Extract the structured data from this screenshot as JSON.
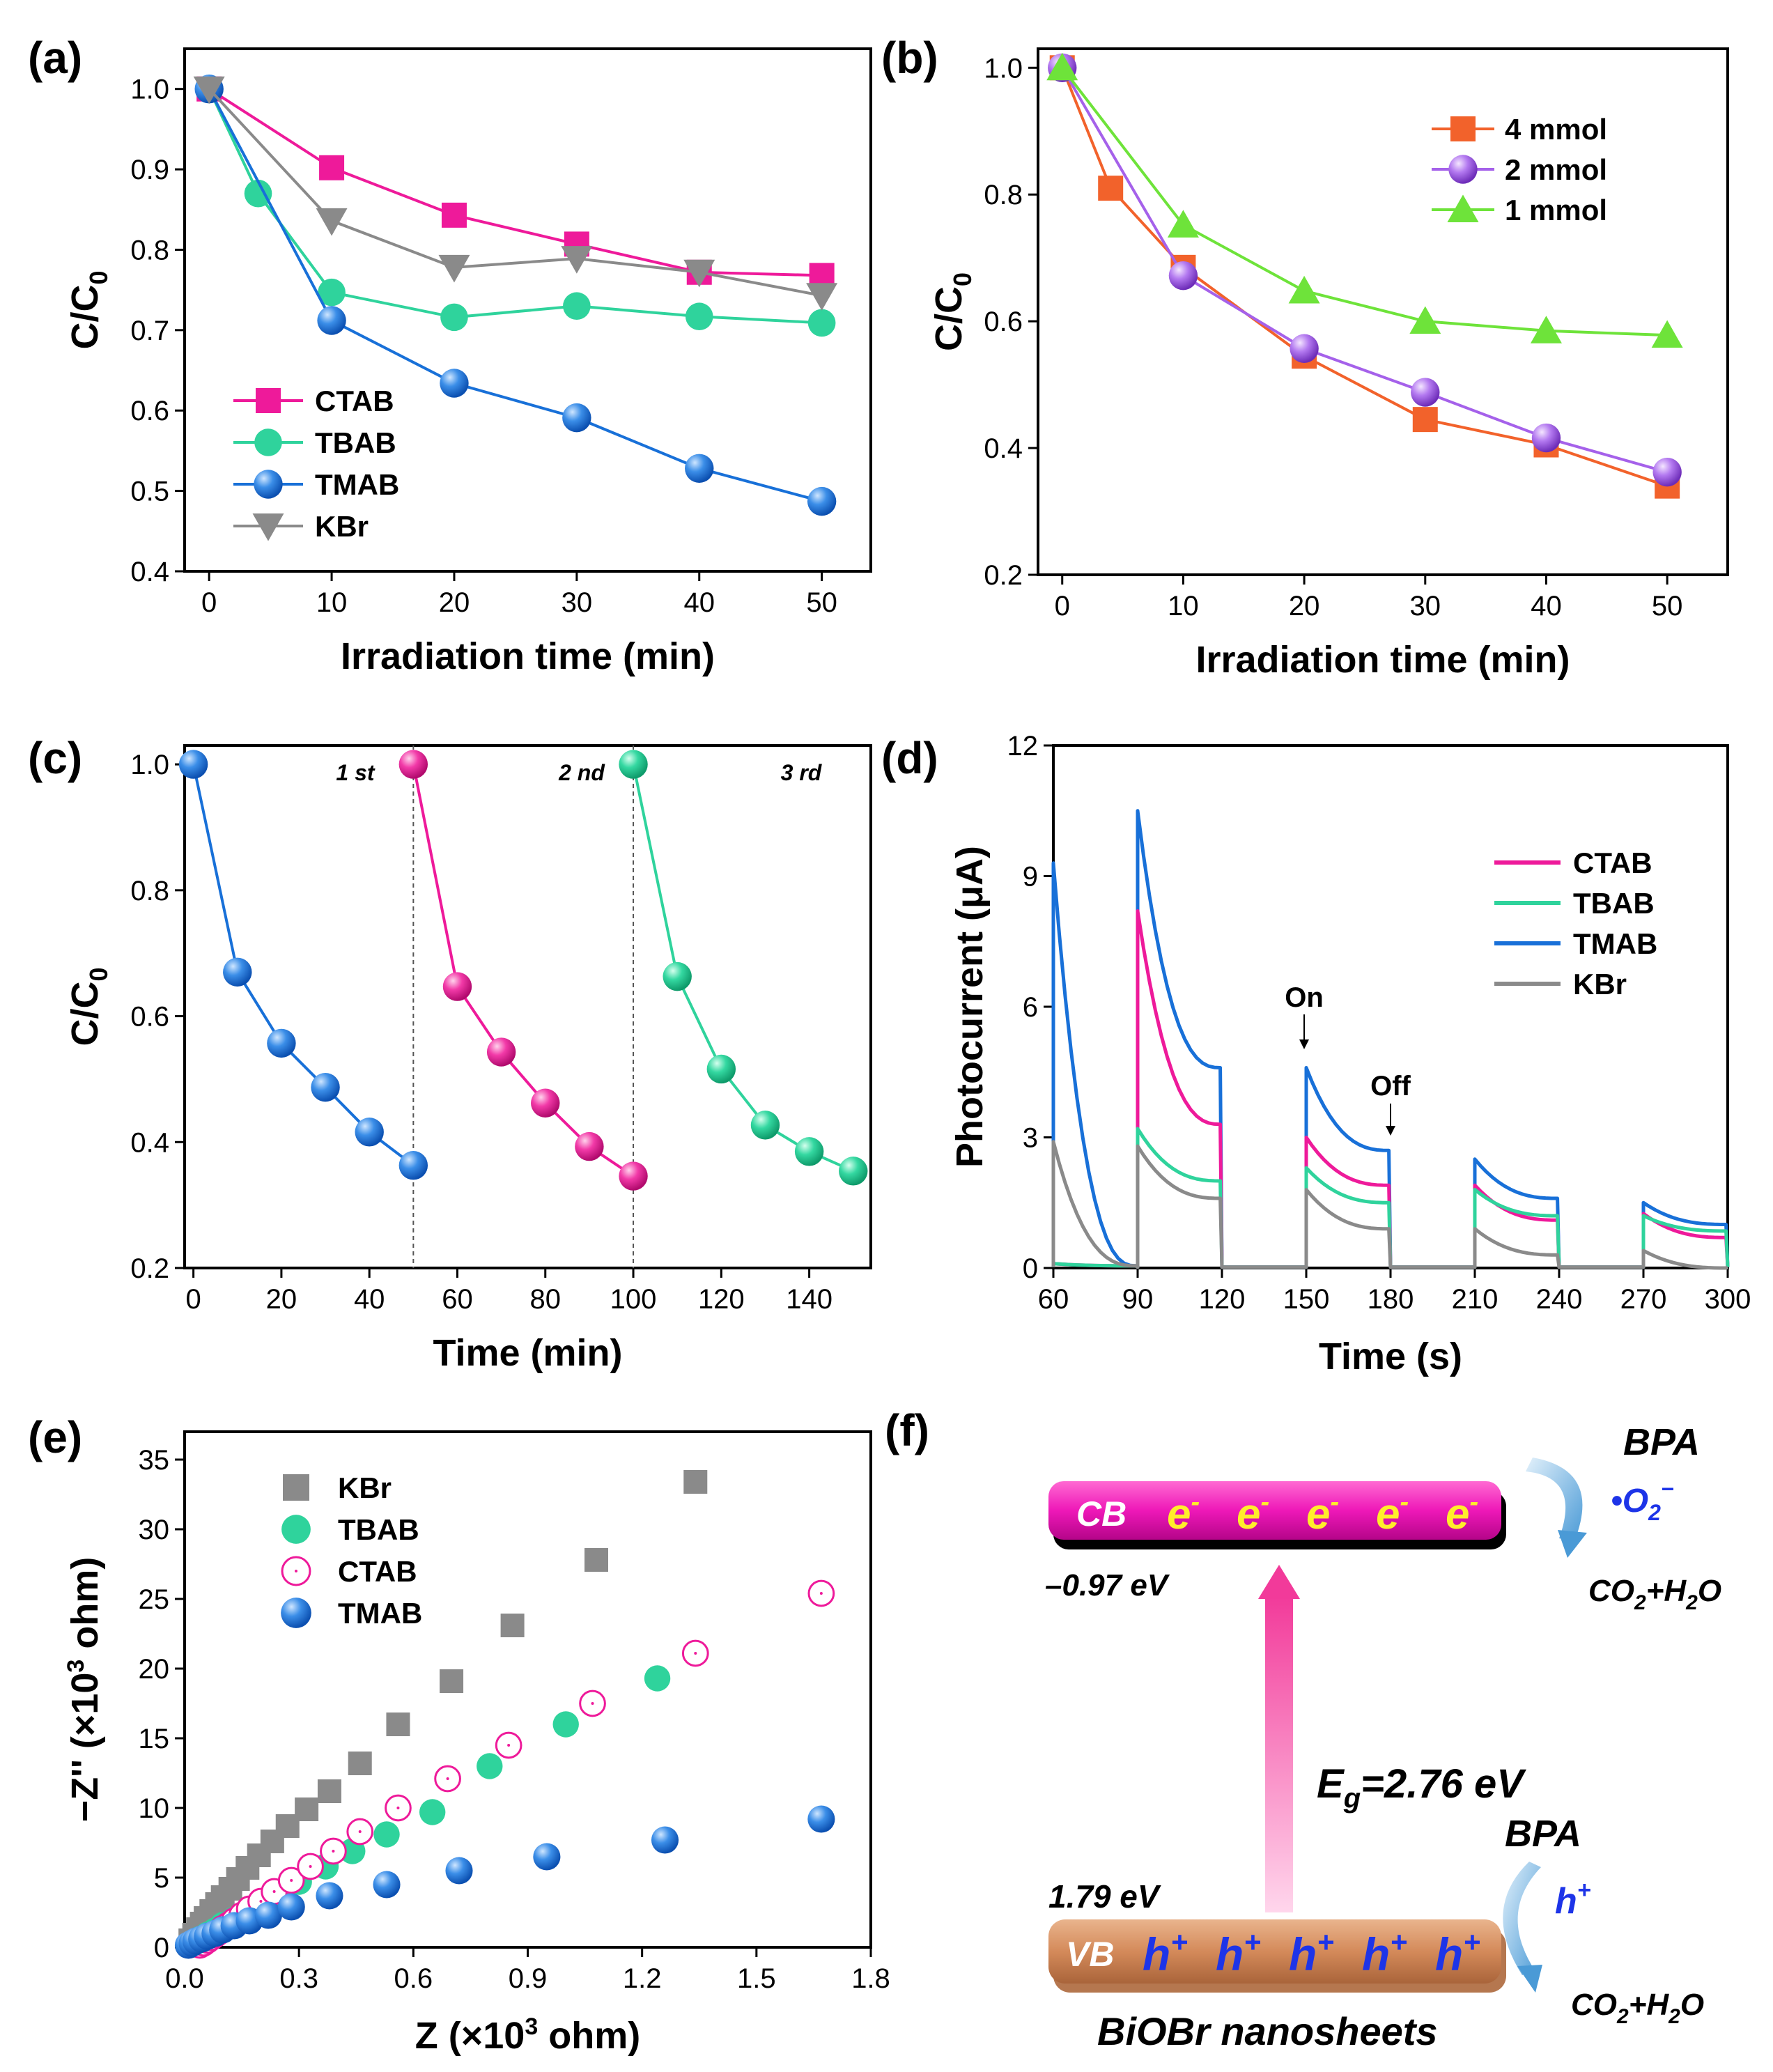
{
  "colors": {
    "pink": "#ee1a9a",
    "teal": "#2fd39c",
    "blue": "#1870d8",
    "gray": "#8a8a8a",
    "orange": "#f2622b",
    "purple": "#a561ea",
    "green": "#6ee33a"
  },
  "chart_data": [
    {
      "id": "a",
      "panel_label": "(a)",
      "type": "line",
      "xlabel": "Irradiation time (min)",
      "ylabel": "C/C0",
      "xlim": [
        -2,
        54
      ],
      "ylim": [
        0.4,
        1.05
      ],
      "xticks": [
        "0",
        "10",
        "20",
        "30",
        "40",
        "50"
      ],
      "yticks": [
        "0.4",
        "0.5",
        "0.6",
        "0.7",
        "0.8",
        "0.9",
        "1.0"
      ],
      "legend_position": "bottom-left",
      "series": [
        {
          "name": "CTAB",
          "color": "pink",
          "marker": "square",
          "x": [
            0,
            10,
            20,
            30,
            40,
            50
          ],
          "y": [
            1.0,
            0.902,
            0.843,
            0.807,
            0.772,
            0.768
          ]
        },
        {
          "name": "TBAB",
          "color": "teal",
          "marker": "circle",
          "x": [
            0,
            4,
            10,
            20,
            30,
            40,
            50
          ],
          "y": [
            1.0,
            0.87,
            0.747,
            0.716,
            0.73,
            0.717,
            0.709
          ]
        },
        {
          "name": "TMAB",
          "color": "blue",
          "marker": "sphere",
          "x": [
            0,
            10,
            20,
            30,
            40,
            50
          ],
          "y": [
            1.0,
            0.712,
            0.634,
            0.591,
            0.528,
            0.487
          ]
        },
        {
          "name": "KBr",
          "color": "gray",
          "marker": "triangle-down",
          "x": [
            0,
            10,
            20,
            30,
            40,
            50
          ],
          "y": [
            1.0,
            0.836,
            0.778,
            0.789,
            0.772,
            0.743
          ]
        }
      ]
    },
    {
      "id": "b",
      "panel_label": "(b)",
      "type": "line",
      "xlabel": "Irradiation time (min)",
      "ylabel": "C/C0",
      "xlim": [
        -2,
        55
      ],
      "ylim": [
        0.2,
        1.03
      ],
      "xticks": [
        "0",
        "10",
        "20",
        "30",
        "40",
        "50"
      ],
      "yticks": [
        "0.2",
        "0.4",
        "0.6",
        "0.8",
        "1.0"
      ],
      "legend_position": "top-right",
      "series": [
        {
          "name": "4 mmol",
          "color": "orange",
          "marker": "square",
          "x": [
            0,
            4,
            10,
            20,
            30,
            40,
            50
          ],
          "y": [
            1.0,
            0.81,
            0.685,
            0.545,
            0.445,
            0.405,
            0.34
          ]
        },
        {
          "name": "2 mmol",
          "color": "purple",
          "marker": "sphere",
          "x": [
            0,
            10,
            20,
            30,
            40,
            50
          ],
          "y": [
            1.0,
            0.672,
            0.557,
            0.488,
            0.416,
            0.362
          ]
        },
        {
          "name": "1 mmol",
          "color": "green",
          "marker": "triangle-up",
          "x": [
            0,
            10,
            20,
            30,
            40,
            50
          ],
          "y": [
            1.0,
            0.752,
            0.648,
            0.6,
            0.585,
            0.578
          ]
        }
      ]
    },
    {
      "id": "c",
      "panel_label": "(c)",
      "type": "line",
      "xlabel": "Time (min)",
      "ylabel": "C/C0",
      "xlim": [
        -2,
        154
      ],
      "ylim": [
        0.2,
        1.03
      ],
      "xticks": [
        "0",
        "20",
        "40",
        "60",
        "80",
        "100",
        "120",
        "140"
      ],
      "yticks": [
        "0.2",
        "0.4",
        "0.6",
        "0.8",
        "1.0"
      ],
      "cycle_labels": [
        "1 st",
        "2 nd",
        "3 rd"
      ],
      "dividers_x": [
        50,
        100
      ],
      "series": [
        {
          "name": "1 st",
          "color": "blue",
          "x": [
            0,
            10,
            20,
            30,
            40,
            50
          ],
          "y": [
            1.0,
            0.67,
            0.557,
            0.487,
            0.416,
            0.363
          ]
        },
        {
          "name": "2 nd",
          "color": "pink",
          "x": [
            50,
            60,
            70,
            80,
            90,
            100
          ],
          "y": [
            1.0,
            0.647,
            0.543,
            0.462,
            0.393,
            0.346
          ]
        },
        {
          "name": "3 rd",
          "color": "teal",
          "x": [
            100,
            110,
            120,
            130,
            140,
            150
          ],
          "y": [
            1.0,
            0.663,
            0.516,
            0.427,
            0.385,
            0.354
          ]
        }
      ]
    },
    {
      "id": "d",
      "panel_label": "(d)",
      "type": "line",
      "xlabel": "Time (s)",
      "ylabel": "Photocurrent (μA)",
      "xlim": [
        60,
        300
      ],
      "ylim": [
        0,
        12
      ],
      "xticks": [
        "60",
        "90",
        "120",
        "150",
        "180",
        "210",
        "240",
        "270",
        "300"
      ],
      "yticks": [
        "0",
        "3",
        "6",
        "9",
        "12"
      ],
      "legend_position": "top-right",
      "annotations": {
        "on": "On",
        "off": "Off"
      },
      "series": [
        {
          "name": "CTAB",
          "color": "pink",
          "peak": [
            0.1,
            8.2,
            3.0,
            1.9,
            1.25
          ],
          "end": [
            0.05,
            3.3,
            1.9,
            1.1,
            0.7
          ]
        },
        {
          "name": "TBAB",
          "color": "teal",
          "peak": [
            0.1,
            3.2,
            2.3,
            1.8,
            1.2
          ],
          "end": [
            0.05,
            2.0,
            1.5,
            1.2,
            0.85
          ]
        },
        {
          "name": "TMAB",
          "color": "blue",
          "peak": [
            9.3,
            10.5,
            4.6,
            2.5,
            1.5
          ],
          "end": [
            0.05,
            4.6,
            2.7,
            1.6,
            1.0
          ]
        },
        {
          "name": "KBr",
          "color": "gray",
          "peak": [
            2.9,
            2.8,
            1.8,
            0.9,
            0.4
          ],
          "end": [
            0.05,
            1.6,
            0.9,
            0.3,
            0.0
          ]
        }
      ]
    },
    {
      "id": "e",
      "panel_label": "(e)",
      "type": "scatter",
      "xlabel": "Z (×10³ ohm)",
      "ylabel": "−Z'' (×10³ ohm)",
      "xlim": [
        0,
        1.8
      ],
      "ylim": [
        0,
        37
      ],
      "xticks": [
        "0.0",
        "0.3",
        "0.6",
        "0.9",
        "1.2",
        "1.5",
        "1.8"
      ],
      "yticks": [
        "0",
        "5",
        "10",
        "15",
        "20",
        "25",
        "30",
        "35"
      ],
      "legend_position": "top-left",
      "series": [
        {
          "name": "KBr",
          "color": "gray",
          "marker": "square",
          "x": [
            0.015,
            0.025,
            0.035,
            0.045,
            0.055,
            0.07,
            0.085,
            0.1,
            0.12,
            0.14,
            0.165,
            0.195,
            0.23,
            0.27,
            0.32,
            0.38,
            0.46,
            0.56,
            0.7,
            0.86,
            1.08,
            1.34
          ],
          "y": [
            0.5,
            0.9,
            1.3,
            1.7,
            2.1,
            2.6,
            3.1,
            3.6,
            4.2,
            4.9,
            5.7,
            6.6,
            7.6,
            8.7,
            9.9,
            11.2,
            13.2,
            16.0,
            19.1,
            23.1,
            27.8,
            33.4
          ]
        },
        {
          "name": "TBAB",
          "color": "teal",
          "marker": "circle",
          "x": [
            0.02,
            0.04,
            0.06,
            0.08,
            0.1,
            0.13,
            0.16,
            0.2,
            0.25,
            0.3,
            0.37,
            0.44,
            0.53,
            0.65,
            0.8,
            1.0,
            1.24
          ],
          "y": [
            0.3,
            0.6,
            0.9,
            1.2,
            1.6,
            2.0,
            2.5,
            3.1,
            3.9,
            4.7,
            5.8,
            6.9,
            8.1,
            9.7,
            13.0,
            16.0,
            19.3
          ]
        },
        {
          "name": "CTAB",
          "color": "pink",
          "marker": "open-circle",
          "x": [
            0.04,
            0.05,
            0.06,
            0.07,
            0.08,
            0.09,
            0.1,
            0.115,
            0.13,
            0.15,
            0.17,
            0.2,
            0.235,
            0.28,
            0.33,
            0.39,
            0.46,
            0.56,
            0.69,
            0.85,
            1.07,
            1.34,
            1.67
          ],
          "y": [
            0.15,
            0.3,
            0.5,
            0.7,
            0.9,
            1.1,
            1.35,
            1.6,
            1.9,
            2.3,
            2.75,
            3.3,
            4.0,
            4.8,
            5.8,
            6.9,
            8.3,
            10.0,
            12.1,
            14.5,
            17.5,
            21.1,
            25.4
          ]
        },
        {
          "name": "TMAB",
          "color": "blue",
          "marker": "sphere",
          "x": [
            0.01,
            0.02,
            0.03,
            0.045,
            0.06,
            0.08,
            0.1,
            0.13,
            0.17,
            0.22,
            0.28,
            0.38,
            0.53,
            0.72,
            0.95,
            1.26,
            1.67
          ],
          "y": [
            0.15,
            0.3,
            0.45,
            0.6,
            0.8,
            1.0,
            1.25,
            1.55,
            1.9,
            2.3,
            2.9,
            3.7,
            4.5,
            5.5,
            6.5,
            7.7,
            9.2
          ]
        }
      ]
    }
  ],
  "schematic": {
    "panel_label": "(f)",
    "cb_label": "CB",
    "vb_label": "VB",
    "electron_base": "e",
    "electron_sup": "-",
    "hole_base": "h",
    "hole_sup": "+",
    "cb_potential": "–0.97 eV",
    "vb_potential": "1.79 eV",
    "eg_prefix": "E",
    "eg_sub": "g",
    "eg_value": "=2.76 eV",
    "bpa_top": "BPA",
    "bpa_bottom": "BPA",
    "radical_prefix": "•O",
    "radical_sub": "2",
    "radical_sup": "−",
    "hole_species": "h",
    "hole_species_sup": "+",
    "prod_a": "CO",
    "prod_sub": "2",
    "prod_b": "+H",
    "prod_sub2": "2",
    "prod_c": "O",
    "caption": "BiOBr nanosheets"
  }
}
